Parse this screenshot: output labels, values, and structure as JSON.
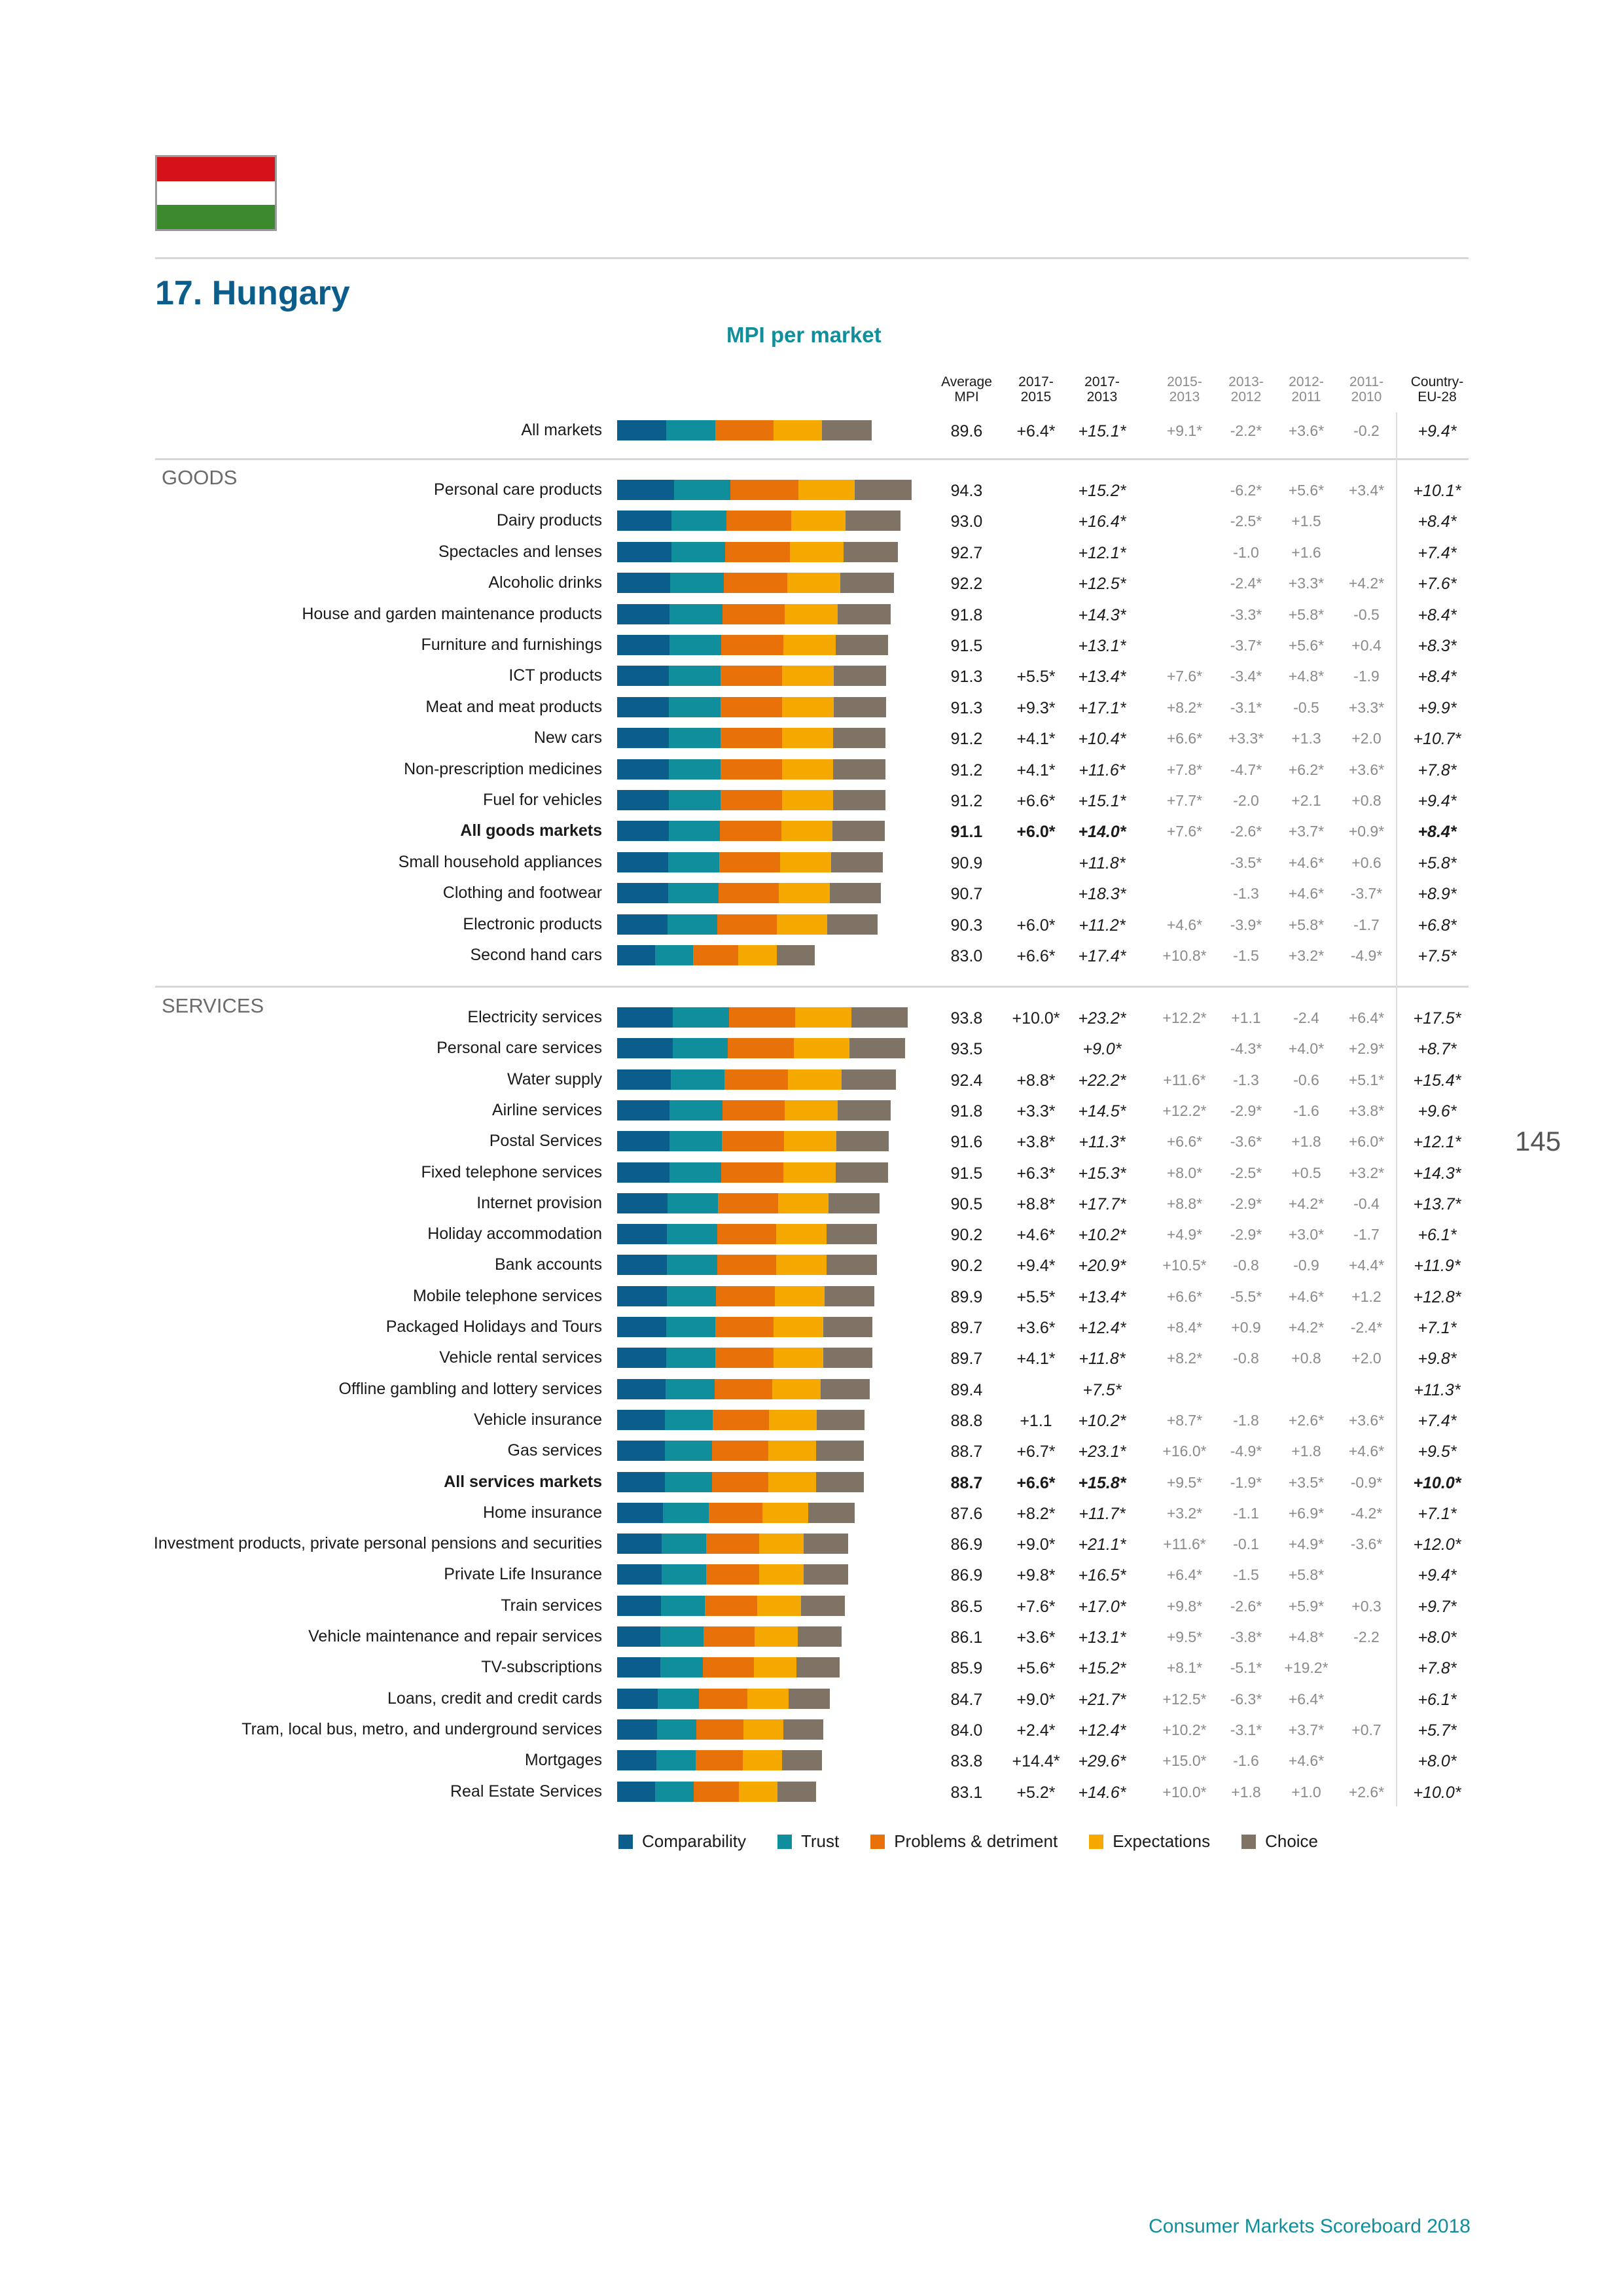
{
  "flag_colors": [
    "#d5121a",
    "#ffffff",
    "#3c8a2e"
  ],
  "page_title": "17. Hungary",
  "chart_subtitle": "MPI per market",
  "page_number": "145",
  "footer": "Consumer Markets Scoreboard 2018",
  "column_headers": [
    "Average\nMPI",
    "2017-\n2015",
    "2017-\n2013",
    "2015-\n2013",
    "2013-\n2012",
    "2012-\n2011",
    "2011-\n2010",
    "Country-\nEU-28"
  ],
  "sections": [
    "GOODS",
    "SERVICES"
  ],
  "colors": {
    "Comparability": "#0b5d8c",
    "Trust": "#118e9c",
    "Problems & detriment": "#e8710a",
    "Expectations": "#f5a800",
    "Choice": "#7f7365"
  },
  "chart_data": {
    "type": "bar",
    "stacked": true,
    "orientation": "horizontal",
    "series_names": [
      "Comparability",
      "Trust",
      "Problems & detriment",
      "Expectations",
      "Choice"
    ],
    "rows": [
      {
        "name": "All markets",
        "group": "all",
        "bold": false,
        "mpi": "89.6",
        "c1": "+6.4*",
        "c2": "+15.1*",
        "c3": "+9.1*",
        "c4": "-2.2*",
        "c5": "+3.6*",
        "c6": "-0.2",
        "c7": "+9.4*"
      },
      {
        "name": "Personal care products",
        "group": "goods",
        "bold": false,
        "mpi": "94.3",
        "c1": "",
        "c2": "+15.2*",
        "c3": "",
        "c4": "-6.2*",
        "c5": "+5.6*",
        "c6": "+3.4*",
        "c7": "+10.1*"
      },
      {
        "name": "Dairy products",
        "group": "goods",
        "bold": false,
        "mpi": "93.0",
        "c1": "",
        "c2": "+16.4*",
        "c3": "",
        "c4": "-2.5*",
        "c5": "+1.5",
        "c6": "",
        "c7": "+8.4*"
      },
      {
        "name": "Spectacles and lenses",
        "group": "goods",
        "bold": false,
        "mpi": "92.7",
        "c1": "",
        "c2": "+12.1*",
        "c3": "",
        "c4": "-1.0",
        "c5": "+1.6",
        "c6": "",
        "c7": "+7.4*"
      },
      {
        "name": "Alcoholic drinks",
        "group": "goods",
        "bold": false,
        "mpi": "92.2",
        "c1": "",
        "c2": "+12.5*",
        "c3": "",
        "c4": "-2.4*",
        "c5": "+3.3*",
        "c6": "+4.2*",
        "c7": "+7.6*"
      },
      {
        "name": "House and garden maintenance products",
        "group": "goods",
        "bold": false,
        "mpi": "91.8",
        "c1": "",
        "c2": "+14.3*",
        "c3": "",
        "c4": "-3.3*",
        "c5": "+5.8*",
        "c6": "-0.5",
        "c7": "+8.4*"
      },
      {
        "name": "Furniture and furnishings",
        "group": "goods",
        "bold": false,
        "mpi": "91.5",
        "c1": "",
        "c2": "+13.1*",
        "c3": "",
        "c4": "-3.7*",
        "c5": "+5.6*",
        "c6": "+0.4",
        "c7": "+8.3*"
      },
      {
        "name": "ICT products",
        "group": "goods",
        "bold": false,
        "mpi": "91.3",
        "c1": "+5.5*",
        "c2": "+13.4*",
        "c3": "+7.6*",
        "c4": "-3.4*",
        "c5": "+4.8*",
        "c6": "-1.9",
        "c7": "+8.4*"
      },
      {
        "name": "Meat and meat products",
        "group": "goods",
        "bold": false,
        "mpi": "91.3",
        "c1": "+9.3*",
        "c2": "+17.1*",
        "c3": "+8.2*",
        "c4": "-3.1*",
        "c5": "-0.5",
        "c6": "+3.3*",
        "c7": "+9.9*"
      },
      {
        "name": "New cars",
        "group": "goods",
        "bold": false,
        "mpi": "91.2",
        "c1": "+4.1*",
        "c2": "+10.4*",
        "c3": "+6.6*",
        "c4": "+3.3*",
        "c5": "+1.3",
        "c6": "+2.0",
        "c7": "+10.7*"
      },
      {
        "name": "Non-prescription medicines",
        "group": "goods",
        "bold": false,
        "mpi": "91.2",
        "c1": "+4.1*",
        "c2": "+11.6*",
        "c3": "+7.8*",
        "c4": "-4.7*",
        "c5": "+6.2*",
        "c6": "+3.6*",
        "c7": "+7.8*"
      },
      {
        "name": "Fuel for vehicles",
        "group": "goods",
        "bold": false,
        "mpi": "91.2",
        "c1": "+6.6*",
        "c2": "+15.1*",
        "c3": "+7.7*",
        "c4": "-2.0",
        "c5": "+2.1",
        "c6": "+0.8",
        "c7": "+9.4*"
      },
      {
        "name": "All goods markets",
        "group": "goods",
        "bold": true,
        "mpi": "91.1",
        "c1": "+6.0*",
        "c2": "+14.0*",
        "c3": "+7.6*",
        "c4": "-2.6*",
        "c5": "+3.7*",
        "c6": "+0.9*",
        "c7": "+8.4*"
      },
      {
        "name": "Small household appliances",
        "group": "goods",
        "bold": false,
        "mpi": "90.9",
        "c1": "",
        "c2": "+11.8*",
        "c3": "",
        "c4": "-3.5*",
        "c5": "+4.6*",
        "c6": "+0.6",
        "c7": "+5.8*"
      },
      {
        "name": "Clothing and footwear",
        "group": "goods",
        "bold": false,
        "mpi": "90.7",
        "c1": "",
        "c2": "+18.3*",
        "c3": "",
        "c4": "-1.3",
        "c5": "+4.6*",
        "c6": "-3.7*",
        "c7": "+8.9*"
      },
      {
        "name": "Electronic products",
        "group": "goods",
        "bold": false,
        "mpi": "90.3",
        "c1": "+6.0*",
        "c2": "+11.2*",
        "c3": "+4.6*",
        "c4": "-3.9*",
        "c5": "+5.8*",
        "c6": "-1.7",
        "c7": "+6.8*"
      },
      {
        "name": "Second hand cars",
        "group": "goods",
        "bold": false,
        "mpi": "83.0",
        "c1": "+6.6*",
        "c2": "+17.4*",
        "c3": "+10.8*",
        "c4": "-1.5",
        "c5": "+3.2*",
        "c6": "-4.9*",
        "c7": "+7.5*"
      },
      {
        "name": "Electricity services",
        "group": "services",
        "bold": false,
        "mpi": "93.8",
        "c1": "+10.0*",
        "c2": "+23.2*",
        "c3": "+12.2*",
        "c4": "+1.1",
        "c5": "-2.4",
        "c6": "+6.4*",
        "c7": "+17.5*"
      },
      {
        "name": "Personal care services",
        "group": "services",
        "bold": false,
        "mpi": "93.5",
        "c1": "",
        "c2": "+9.0*",
        "c3": "",
        "c4": "-4.3*",
        "c5": "+4.0*",
        "c6": "+2.9*",
        "c7": "+8.7*"
      },
      {
        "name": "Water supply",
        "group": "services",
        "bold": false,
        "mpi": "92.4",
        "c1": "+8.8*",
        "c2": "+22.2*",
        "c3": "+11.6*",
        "c4": "-1.3",
        "c5": "-0.6",
        "c6": "+5.1*",
        "c7": "+15.4*"
      },
      {
        "name": "Airline services",
        "group": "services",
        "bold": false,
        "mpi": "91.8",
        "c1": "+3.3*",
        "c2": "+14.5*",
        "c3": "+12.2*",
        "c4": "-2.9*",
        "c5": "-1.6",
        "c6": "+3.8*",
        "c7": "+9.6*"
      },
      {
        "name": "Postal Services",
        "group": "services",
        "bold": false,
        "mpi": "91.6",
        "c1": "+3.8*",
        "c2": "+11.3*",
        "c3": "+6.6*",
        "c4": "-3.6*",
        "c5": "+1.8",
        "c6": "+6.0*",
        "c7": "+12.1*"
      },
      {
        "name": "Fixed telephone services",
        "group": "services",
        "bold": false,
        "mpi": "91.5",
        "c1": "+6.3*",
        "c2": "+15.3*",
        "c3": "+8.0*",
        "c4": "-2.5*",
        "c5": "+0.5",
        "c6": "+3.2*",
        "c7": "+14.3*"
      },
      {
        "name": "Internet provision",
        "group": "services",
        "bold": false,
        "mpi": "90.5",
        "c1": "+8.8*",
        "c2": "+17.7*",
        "c3": "+8.8*",
        "c4": "-2.9*",
        "c5": "+4.2*",
        "c6": "-0.4",
        "c7": "+13.7*"
      },
      {
        "name": "Holiday accommodation",
        "group": "services",
        "bold": false,
        "mpi": "90.2",
        "c1": "+4.6*",
        "c2": "+10.2*",
        "c3": "+4.9*",
        "c4": "-2.9*",
        "c5": "+3.0*",
        "c6": "-1.7",
        "c7": "+6.1*"
      },
      {
        "name": "Bank accounts",
        "group": "services",
        "bold": false,
        "mpi": "90.2",
        "c1": "+9.4*",
        "c2": "+20.9*",
        "c3": "+10.5*",
        "c4": "-0.8",
        "c5": "-0.9",
        "c6": "+4.4*",
        "c7": "+11.9*"
      },
      {
        "name": "Mobile telephone services",
        "group": "services",
        "bold": false,
        "mpi": "89.9",
        "c1": "+5.5*",
        "c2": "+13.4*",
        "c3": "+6.6*",
        "c4": "-5.5*",
        "c5": "+4.6*",
        "c6": "+1.2",
        "c7": "+12.8*"
      },
      {
        "name": "Packaged Holidays and Tours",
        "group": "services",
        "bold": false,
        "mpi": "89.7",
        "c1": "+3.6*",
        "c2": "+12.4*",
        "c3": "+8.4*",
        "c4": "+0.9",
        "c5": "+4.2*",
        "c6": "-2.4*",
        "c7": "+7.1*"
      },
      {
        "name": "Vehicle rental services",
        "group": "services",
        "bold": false,
        "mpi": "89.7",
        "c1": "+4.1*",
        "c2": "+11.8*",
        "c3": "+8.2*",
        "c4": "-0.8",
        "c5": "+0.8",
        "c6": "+2.0",
        "c7": "+9.8*"
      },
      {
        "name": "Offline gambling and lottery services",
        "group": "services",
        "bold": false,
        "mpi": "89.4",
        "c1": "",
        "c2": "+7.5*",
        "c3": "",
        "c4": "",
        "c5": "",
        "c6": "",
        "c7": "+11.3*"
      },
      {
        "name": "Vehicle insurance",
        "group": "services",
        "bold": false,
        "mpi": "88.8",
        "c1": "+1.1",
        "c2": "+10.2*",
        "c3": "+8.7*",
        "c4": "-1.8",
        "c5": "+2.6*",
        "c6": "+3.6*",
        "c7": "+7.4*"
      },
      {
        "name": "Gas services",
        "group": "services",
        "bold": false,
        "mpi": "88.7",
        "c1": "+6.7*",
        "c2": "+23.1*",
        "c3": "+16.0*",
        "c4": "-4.9*",
        "c5": "+1.8",
        "c6": "+4.6*",
        "c7": "+9.5*"
      },
      {
        "name": "All services markets",
        "group": "services",
        "bold": true,
        "mpi": "88.7",
        "c1": "+6.6*",
        "c2": "+15.8*",
        "c3": "+9.5*",
        "c4": "-1.9*",
        "c5": "+3.5*",
        "c6": "-0.9*",
        "c7": "+10.0*"
      },
      {
        "name": "Home insurance",
        "group": "services",
        "bold": false,
        "mpi": "87.6",
        "c1": "+8.2*",
        "c2": "+11.7*",
        "c3": "+3.2*",
        "c4": "-1.1",
        "c5": "+6.9*",
        "c6": "-4.2*",
        "c7": "+7.1*"
      },
      {
        "name": "Investment products, private personal pensions and securities",
        "group": "services",
        "bold": false,
        "mpi": "86.9",
        "c1": "+9.0*",
        "c2": "+21.1*",
        "c3": "+11.6*",
        "c4": "-0.1",
        "c5": "+4.9*",
        "c6": "-3.6*",
        "c7": "+12.0*"
      },
      {
        "name": "Private Life Insurance",
        "group": "services",
        "bold": false,
        "mpi": "86.9",
        "c1": "+9.8*",
        "c2": "+16.5*",
        "c3": "+6.4*",
        "c4": "-1.5",
        "c5": "+5.8*",
        "c6": "",
        "c7": "+9.4*"
      },
      {
        "name": "Train services",
        "group": "services",
        "bold": false,
        "mpi": "86.5",
        "c1": "+7.6*",
        "c2": "+17.0*",
        "c3": "+9.8*",
        "c4": "-2.6*",
        "c5": "+5.9*",
        "c6": "+0.3",
        "c7": "+9.7*"
      },
      {
        "name": "Vehicle maintenance and repair services",
        "group": "services",
        "bold": false,
        "mpi": "86.1",
        "c1": "+3.6*",
        "c2": "+13.1*",
        "c3": "+9.5*",
        "c4": "-3.8*",
        "c5": "+4.8*",
        "c6": "-2.2",
        "c7": "+8.0*"
      },
      {
        "name": "TV-subscriptions",
        "group": "services",
        "bold": false,
        "mpi": "85.9",
        "c1": "+5.6*",
        "c2": "+15.2*",
        "c3": "+8.1*",
        "c4": "-5.1*",
        "c5": "+19.2*",
        "c6": "",
        "c7": "+7.8*"
      },
      {
        "name": "Loans, credit and credit cards",
        "group": "services",
        "bold": false,
        "mpi": "84.7",
        "c1": "+9.0*",
        "c2": "+21.7*",
        "c3": "+12.5*",
        "c4": "-6.3*",
        "c5": "+6.4*",
        "c6": "",
        "c7": "+6.1*"
      },
      {
        "name": "Tram, local bus, metro, and underground services",
        "group": "services",
        "bold": false,
        "mpi": "84.0",
        "c1": "+2.4*",
        "c2": "+12.4*",
        "c3": "+10.2*",
        "c4": "-3.1*",
        "c5": "+3.7*",
        "c6": "+0.7",
        "c7": "+5.7*"
      },
      {
        "name": "Mortgages",
        "group": "services",
        "bold": false,
        "mpi": "83.8",
        "c1": "+14.4*",
        "c2": "+29.6*",
        "c3": "+15.0*",
        "c4": "-1.6",
        "c5": "+4.6*",
        "c6": "",
        "c7": "+8.0*"
      },
      {
        "name": "Real Estate Services",
        "group": "services",
        "bold": false,
        "mpi": "83.1",
        "c1": "+5.2*",
        "c2": "+14.6*",
        "c3": "+10.0*",
        "c4": "+1.8",
        "c5": "+1.0",
        "c6": "+2.6*",
        "c7": "+10.0*"
      }
    ]
  }
}
